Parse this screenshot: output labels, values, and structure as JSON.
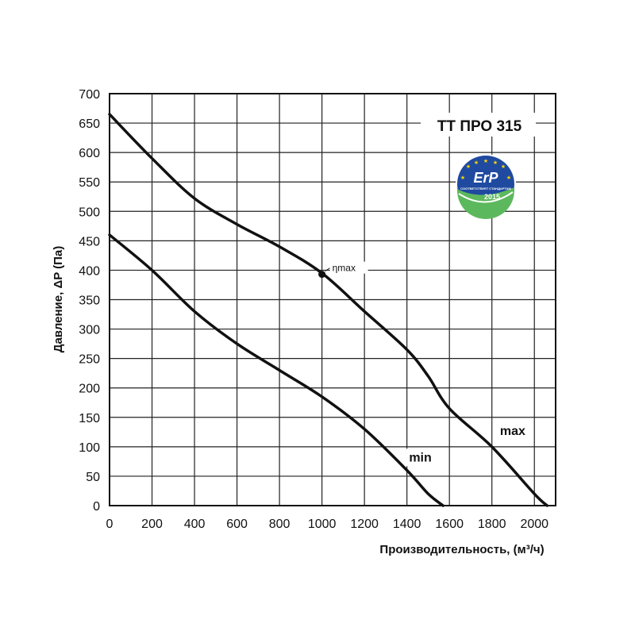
{
  "chart_data": {
    "type": "line",
    "title": "ТТ ПРО 315",
    "xlabel": "Производительность, (м³/ч)",
    "ylabel": "Давление, ΔP (Па)",
    "xlim": [
      0,
      2100
    ],
    "ylim": [
      0,
      700
    ],
    "x_ticks": [
      "0",
      "200",
      "400",
      "600",
      "800",
      "1000",
      "1200",
      "1400",
      "1600",
      "1800",
      "2000"
    ],
    "y_ticks": [
      "0",
      "50",
      "100",
      "150",
      "200",
      "250",
      "300",
      "350",
      "400",
      "450",
      "500",
      "550",
      "600",
      "650",
      "700"
    ],
    "grid": true,
    "series": [
      {
        "name": "max",
        "points": [
          [
            0,
            665
          ],
          [
            200,
            590
          ],
          [
            400,
            522
          ],
          [
            600,
            478
          ],
          [
            800,
            440
          ],
          [
            1000,
            395
          ],
          [
            1200,
            330
          ],
          [
            1400,
            265
          ],
          [
            1500,
            220
          ],
          [
            1600,
            165
          ],
          [
            1800,
            100
          ],
          [
            2000,
            20
          ],
          [
            2060,
            0
          ]
        ]
      },
      {
        "name": "min",
        "points": [
          [
            0,
            460
          ],
          [
            200,
            400
          ],
          [
            400,
            330
          ],
          [
            600,
            275
          ],
          [
            800,
            230
          ],
          [
            1000,
            185
          ],
          [
            1200,
            130
          ],
          [
            1400,
            60
          ],
          [
            1500,
            20
          ],
          [
            1570,
            0
          ]
        ]
      }
    ],
    "annotations": [
      {
        "label": "ηmax",
        "x": 1000,
        "y": 393
      }
    ],
    "logo": {
      "main": "ErP",
      "sub": "2015",
      "caption": "СООТВЕТСТВУЕТ СТАНДАРТАМ"
    }
  }
}
